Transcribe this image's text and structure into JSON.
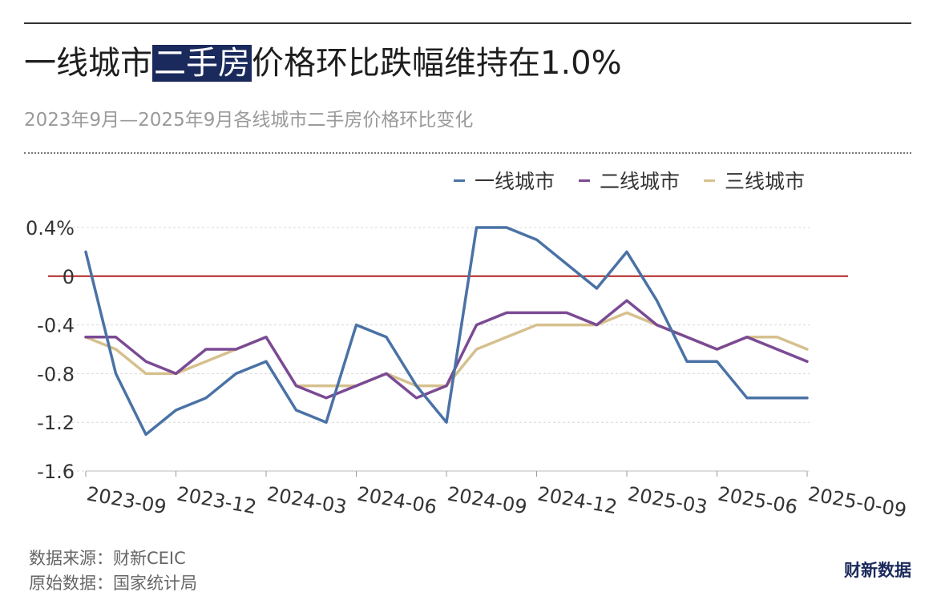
{
  "title_prefix": "一线城市",
  "title_highlight": "二手房",
  "title_suffix": "价格环比跌幅维持在1.0%",
  "subtitle": "2023年9月—2025年9月各线城市二手房价格环比变化",
  "footer": {
    "source": "数据来源：财新CEIC",
    "origin": "原始数据：国家统计局"
  },
  "brand": "财新数据",
  "chart_data": {
    "type": "line",
    "x": [
      "2023-09",
      "2023-10",
      "2023-11",
      "2023-12",
      "2024-01",
      "2024-02",
      "2024-03",
      "2024-04",
      "2024-05",
      "2024-06",
      "2024-07",
      "2024-08",
      "2024-09",
      "2024-10",
      "2024-11",
      "2024-12",
      "2025-01",
      "2025-02",
      "2025-03",
      "2025-04",
      "2025-05",
      "2025-06",
      "2025-07",
      "2025-08",
      "2025-09"
    ],
    "tick_labels": [
      "2023-09",
      "2023-12",
      "2024-03",
      "2024-06",
      "2024-09",
      "2024-12",
      "2025-03",
      "2025-06",
      "2025-0-09"
    ],
    "y_ticks": [
      0.4,
      0,
      -0.4,
      -0.8,
      -1.2,
      -1.6
    ],
    "y_tick_labels": [
      "0.4%",
      "0",
      "-0.4",
      "-0.8",
      "-1.2",
      "-1.6"
    ],
    "ylim": [
      -1.6,
      0.4
    ],
    "grid": true,
    "legend_position": "top-right",
    "zero_line_color": "#b22222",
    "series": [
      {
        "name": "一线城市",
        "color": "#4a72a6",
        "values": [
          0.2,
          -0.8,
          -1.3,
          -1.1,
          -1.0,
          -0.8,
          -0.7,
          -1.1,
          -1.2,
          -0.4,
          -0.5,
          -0.9,
          -1.2,
          0.4,
          0.4,
          0.3,
          0.1,
          -0.1,
          0.2,
          -0.2,
          -0.7,
          -0.7,
          -1.0,
          -1.0,
          -1.0
        ]
      },
      {
        "name": "二线城市",
        "color": "#7b4a94",
        "values": [
          -0.5,
          -0.5,
          -0.7,
          -0.8,
          -0.6,
          -0.6,
          -0.5,
          -0.9,
          -1.0,
          -0.9,
          -0.8,
          -1.0,
          -0.9,
          -0.4,
          -0.3,
          -0.3,
          -0.3,
          -0.4,
          -0.2,
          -0.4,
          -0.5,
          -0.6,
          -0.5,
          -0.6,
          -0.7
        ]
      },
      {
        "name": "三线城市",
        "color": "#d6c08e",
        "values": [
          -0.5,
          -0.6,
          -0.8,
          -0.8,
          -0.7,
          -0.6,
          -0.5,
          -0.9,
          -0.9,
          -0.9,
          -0.8,
          -0.9,
          -0.9,
          -0.6,
          -0.5,
          -0.4,
          -0.4,
          -0.4,
          -0.3,
          -0.4,
          -0.5,
          -0.6,
          -0.5,
          -0.5,
          -0.6
        ]
      }
    ]
  }
}
